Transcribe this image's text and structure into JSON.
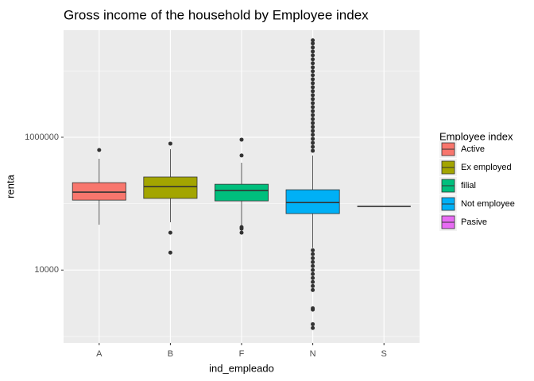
{
  "chart_data": {
    "type": "box",
    "title": "Gross income of the household by Employee index",
    "x_label": "ind_empleado",
    "y_label": "renta",
    "categories": [
      "A",
      "B",
      "F",
      "N",
      "S"
    ],
    "y_scale": "log",
    "ylim": [
      800,
      41000000
    ],
    "yticks": [
      10000,
      1000000
    ],
    "y_minor_grid": [
      1000,
      100000,
      10000000
    ],
    "grid": true,
    "legend_title": "Employee index",
    "legend_position": "right",
    "series": [
      {
        "name": "Active",
        "color": "#F8766D",
        "min": 48200,
        "q1": 113000,
        "median": 149000,
        "q3": 207000,
        "max": 475000,
        "outliers": [
          643000
        ]
      },
      {
        "name": "Ex employed",
        "color": "#A3A500",
        "min": 52500,
        "q1": 120000,
        "median": 181000,
        "q3": 252000,
        "max": 661000,
        "outliers": [
          802000,
          36600,
          18300
        ]
      },
      {
        "name": "filial",
        "color": "#00BF7D",
        "min": 45600,
        "q1": 110000,
        "median": 158000,
        "q3": 196000,
        "max": 414000,
        "outliers": [
          920000,
          531000,
          44300,
          42000,
          36600
        ]
      },
      {
        "name": "Not employee",
        "color": "#00B0F6",
        "min": 21600,
        "q1": 70800,
        "median": 104000,
        "q3": 162000,
        "max": 531000,
        "outliers": [
          28900000,
          25900000,
          22500000,
          19600000,
          17100000,
          14900000,
          13000000,
          11300000,
          9860000,
          8590000,
          7480000,
          6520000,
          5680000,
          4950000,
          4310000,
          3760000,
          3270000,
          2850000,
          2480000,
          2160000,
          1880000,
          1640000,
          1430000,
          1250000,
          1090000,
          946000,
          824000,
          718000,
          626000,
          19900,
          17400,
          15100,
          13200,
          11500,
          10000,
          8710,
          7590,
          6610,
          5750,
          5010,
          2660,
          2530,
          1530,
          1340
        ]
      },
      {
        "name": "Pasive",
        "color": "#E76BF3",
        "min": 90800,
        "q1": 90800,
        "median": 90800,
        "q3": 90800,
        "max": 90800,
        "outliers": []
      }
    ]
  }
}
